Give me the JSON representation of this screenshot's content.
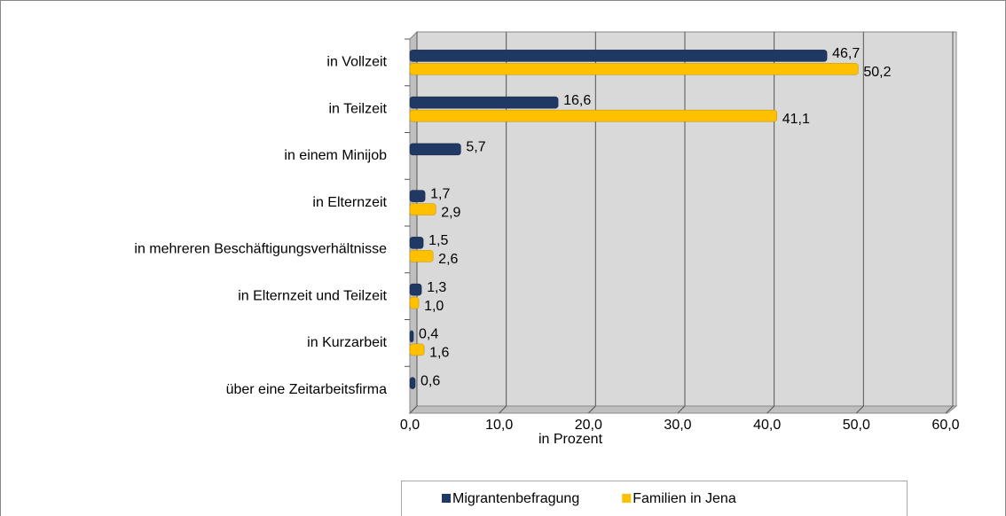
{
  "chart_data": {
    "type": "bar",
    "orientation": "horizontal",
    "categories": [
      "in Vollzeit",
      "in Teilzeit",
      "in einem Minijob",
      "in Elternzeit",
      "in mehreren Beschäftigungsverhältnisse",
      "in Elternzeit und Teilzeit",
      "in Kurzarbeit",
      "über eine Zeitarbeitsfirma"
    ],
    "series": [
      {
        "name": "Migrantenbefragung",
        "color": "#1f3864",
        "values": [
          46.7,
          16.6,
          5.7,
          1.7,
          1.5,
          1.3,
          0.4,
          0.6
        ],
        "value_labels": [
          "46,7",
          "16,6",
          "5,7",
          "1,7",
          "1,5",
          "1,3",
          "0,4",
          "0,6"
        ]
      },
      {
        "name": "Familien in Jena",
        "color": "#ffc000",
        "values": [
          50.2,
          41.1,
          null,
          2.9,
          2.6,
          1.0,
          1.6,
          null
        ],
        "value_labels": [
          "50,2",
          "41,1",
          null,
          "2,9",
          "2,6",
          "1,0",
          "1,6",
          null
        ]
      }
    ],
    "xlabel": "in Prozent",
    "xlim": [
      0,
      60
    ],
    "xticks": [
      {
        "value": 0,
        "label": "0,0"
      },
      {
        "value": 10,
        "label": "10,0"
      },
      {
        "value": 20,
        "label": "20,0"
      },
      {
        "value": 30,
        "label": "30,0"
      },
      {
        "value": 40,
        "label": "40,0"
      },
      {
        "value": 50,
        "label": "50,0"
      },
      {
        "value": 60,
        "label": "60,0"
      }
    ],
    "grid": true,
    "legend": "bottom"
  }
}
